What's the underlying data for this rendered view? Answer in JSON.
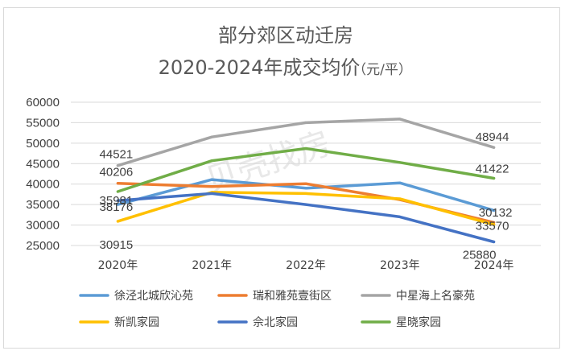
{
  "chart_data": {
    "type": "line",
    "title": "部分郊区动迁房",
    "subtitle": "2020-2024年成交均价",
    "subtitle_unit": "（元/平）",
    "categories": [
      "2020年",
      "2021年",
      "2022年",
      "2023年",
      "2024年"
    ],
    "ylim": [
      25000,
      60000
    ],
    "yticks": [
      25000,
      30000,
      35000,
      40000,
      45000,
      50000,
      55000,
      60000
    ],
    "grid": true,
    "legend_position": "bottom",
    "series": [
      {
        "name": "徐泾北城欣沁苑",
        "color": "#5b9bd5",
        "values": [
          35000,
          41100,
          39000,
          40300,
          33570
        ]
      },
      {
        "name": "瑞和雅苑壹街区",
        "color": "#ed7d31",
        "values": [
          40206,
          39400,
          40100,
          36200,
          30600
        ]
      },
      {
        "name": "中星海上名豪苑",
        "color": "#a5a5a5",
        "values": [
          44521,
          51500,
          55000,
          55900,
          48944
        ]
      },
      {
        "name": "新凯家园",
        "color": "#ffc000",
        "values": [
          30915,
          38000,
          37700,
          36400,
          30132
        ]
      },
      {
        "name": "佘北家园",
        "color": "#4472c4",
        "values": [
          35981,
          37700,
          35000,
          32000,
          25880
        ]
      },
      {
        "name": "星晓家园",
        "color": "#70ad47",
        "values": [
          38176,
          45700,
          48700,
          45300,
          41422
        ]
      }
    ],
    "data_labels": [
      {
        "text": "44521",
        "series": 2,
        "point": 0
      },
      {
        "text": "40206",
        "series": 1,
        "point": 0
      },
      {
        "text": "38176",
        "series": 5,
        "point": 0
      },
      {
        "text": "35981",
        "series": 4,
        "point": 0
      },
      {
        "text": "30915",
        "series": 3,
        "point": 0
      },
      {
        "text": "48944",
        "series": 2,
        "point": 4
      },
      {
        "text": "41422",
        "series": 5,
        "point": 4
      },
      {
        "text": "33570",
        "series": 0,
        "point": 4
      },
      {
        "text": "30132",
        "series": 3,
        "point": 4
      },
      {
        "text": "25880",
        "series": 4,
        "point": 4
      }
    ]
  }
}
